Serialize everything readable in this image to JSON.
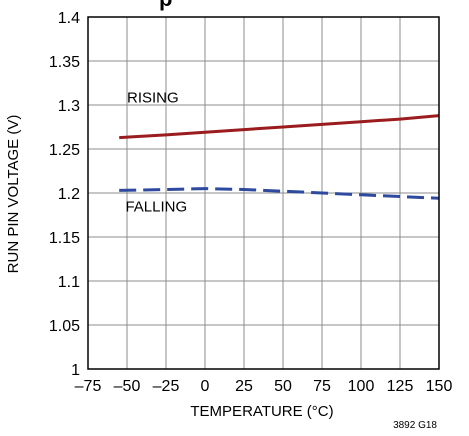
{
  "chart_data": {
    "type": "line",
    "title_fragment": "p",
    "xlabel": "TEMPERATURE (°C)",
    "ylabel": "RUN PIN VOLTAGE (V)",
    "xlim": [
      -75,
      150
    ],
    "ylim": [
      1,
      1.4
    ],
    "x_ticks": [
      -75,
      -50,
      -25,
      0,
      25,
      50,
      75,
      100,
      125,
      150
    ],
    "x_tick_labels": [
      "–75",
      "–50",
      "–25",
      "0",
      "25",
      "50",
      "75",
      "100",
      "125",
      "150"
    ],
    "y_ticks": [
      1,
      1.05,
      1.1,
      1.15,
      1.2,
      1.25,
      1.3,
      1.35,
      1.4
    ],
    "y_tick_labels": [
      "1",
      "1.05",
      "1.1",
      "1.15",
      "1.2",
      "1.25",
      "1.3",
      "1.35",
      "1.4"
    ],
    "grid": true,
    "series": [
      {
        "name": "RISING",
        "color": "#9b1c1f",
        "style": "solid",
        "x": [
          -55,
          -25,
          0,
          25,
          50,
          75,
          100,
          125,
          150
        ],
        "y": [
          1.263,
          1.266,
          1.269,
          1.272,
          1.275,
          1.278,
          1.281,
          1.284,
          1.288
        ]
      },
      {
        "name": "FALLING",
        "color": "#2e4a9e",
        "style": "dashed",
        "x": [
          -55,
          -25,
          0,
          25,
          50,
          75,
          100,
          125,
          150
        ],
        "y": [
          1.203,
          1.204,
          1.205,
          1.204,
          1.202,
          1.2,
          1.198,
          1.196,
          1.194
        ]
      }
    ],
    "figure_id": "3892 G18"
  }
}
